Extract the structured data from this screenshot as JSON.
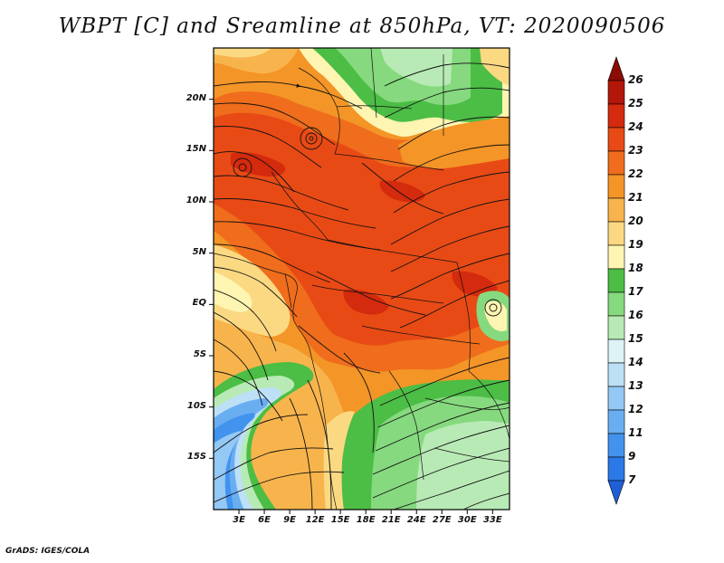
{
  "title": "WBPT [C] and Sreamline at 850hPa, VT: 2020090506",
  "credit": "GrADS: IGES/COLA",
  "map": {
    "lon_range": [
      0,
      35
    ],
    "lat_range": [
      -20,
      25
    ],
    "lat_ticks": [
      {
        "value": 20,
        "label": "20N"
      },
      {
        "value": 15,
        "label": "15N"
      },
      {
        "value": 10,
        "label": "10N"
      },
      {
        "value": 5,
        "label": "5N"
      },
      {
        "value": 0,
        "label": "EQ"
      },
      {
        "value": -5,
        "label": "5S"
      },
      {
        "value": -10,
        "label": "10S"
      },
      {
        "value": -15,
        "label": "15S"
      }
    ],
    "lon_ticks": [
      {
        "value": 3,
        "label": "3E"
      },
      {
        "value": 6,
        "label": "6E"
      },
      {
        "value": 9,
        "label": "9E"
      },
      {
        "value": 12,
        "label": "12E"
      },
      {
        "value": 15,
        "label": "15E"
      },
      {
        "value": 18,
        "label": "18E"
      },
      {
        "value": 21,
        "label": "21E"
      },
      {
        "value": 24,
        "label": "24E"
      },
      {
        "value": 27,
        "label": "27E"
      },
      {
        "value": 30,
        "label": "30E"
      },
      {
        "value": 33,
        "label": "33E"
      }
    ]
  },
  "colorbar": {
    "levels": [
      "7",
      "9",
      "11",
      "12",
      "13",
      "14",
      "15",
      "16",
      "17",
      "18",
      "19",
      "20",
      "21",
      "22",
      "23",
      "24",
      "25",
      "26"
    ],
    "colors": [
      "#1e5fd8",
      "#2b79e6",
      "#4293ee",
      "#6aaef2",
      "#94c8f5",
      "#bde0f7",
      "#def3f6",
      "#b8eab5",
      "#86d97e",
      "#4cbd45",
      "#fdf5b1",
      "#fbd982",
      "#f8b44c",
      "#f49527",
      "#ef6d1c",
      "#e84a15",
      "#d42a0d",
      "#b3170a",
      "#8a0c05"
    ]
  }
}
